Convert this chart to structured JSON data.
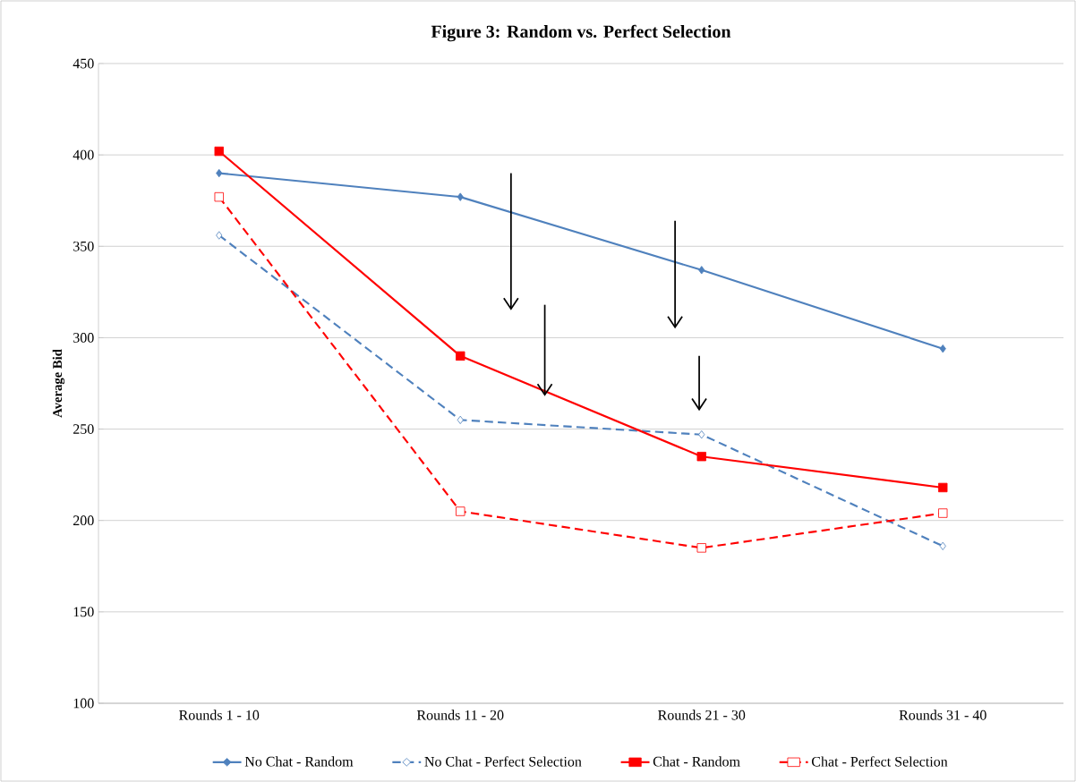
{
  "chart_data": {
    "type": "line",
    "title": "Figure 3: Random vs. Perfect Selection",
    "ylabel": "Average Bid",
    "categories": [
      "Rounds 1 - 10",
      "Rounds 11 - 20",
      "Rounds 21 - 30",
      "Rounds 31 - 40"
    ],
    "series": [
      {
        "name": "No Chat - Random",
        "color": "#4f81bd",
        "values": [
          390,
          377,
          337,
          294
        ],
        "marker": "diamond",
        "line_style": "solid"
      },
      {
        "name": "No Chat - Perfect Selection",
        "color": "#4f81bd",
        "values": [
          356,
          255,
          247,
          186
        ],
        "marker": "diamond",
        "line_style": "dashed"
      },
      {
        "name": "Chat - Random",
        "color": "#ff0000",
        "values": [
          402,
          290,
          235,
          218
        ],
        "marker": "square",
        "line_style": "solid"
      },
      {
        "name": "Chat - Perfect Selection",
        "color": "#ff0000",
        "values": [
          377,
          205,
          185,
          204
        ],
        "marker": "square",
        "line_style": "dashed"
      }
    ],
    "ylim": [
      100,
      450
    ],
    "yticks": [
      100,
      150,
      200,
      250,
      300,
      350,
      400,
      450
    ],
    "grid": "y",
    "legend": "bottom"
  }
}
